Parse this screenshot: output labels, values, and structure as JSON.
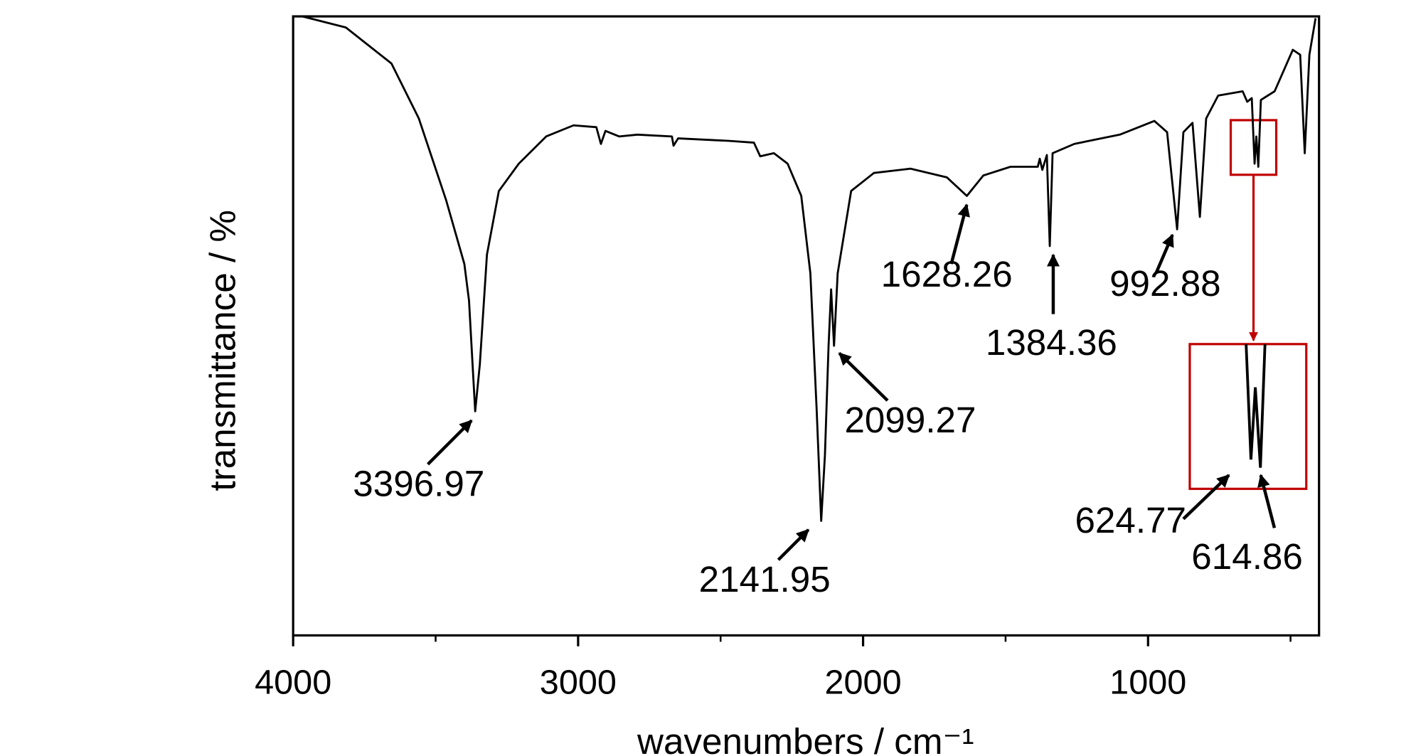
{
  "chart_data": {
    "type": "line",
    "x_label": "wavenumbers / cm⁻¹",
    "y_label": "transmittance / %",
    "xlim": [
      4000,
      400
    ],
    "xticks": [
      4000,
      3000,
      2000,
      1000
    ],
    "xminorticks": [
      3500,
      2500,
      1500,
      500
    ],
    "ylim": [
      0,
      100
    ],
    "color": "#000000",
    "x": [
      3968,
      3815,
      3655,
      3559,
      3463,
      3399,
      3383,
      3367,
      3361,
      3345,
      3320,
      3278,
      3208,
      3112,
      3016,
      2936,
      2920,
      2904,
      2856,
      2792,
      2671,
      2665,
      2649,
      2473,
      2383,
      2361,
      2313,
      2265,
      2217,
      2185,
      2163,
      2147,
      2134,
      2121,
      2112,
      2102,
      2089,
      2042,
      1962,
      1834,
      1706,
      1636,
      1578,
      1483,
      1387,
      1380,
      1371,
      1355,
      1345,
      1335,
      1259,
      1099,
      978,
      933,
      898,
      876,
      844,
      818,
      796,
      754,
      668,
      652,
      636,
      626,
      620,
      613,
      604,
      556,
      492,
      466,
      450,
      434,
      412
    ],
    "values": [
      100,
      98.2,
      92.4,
      83.5,
      70.3,
      60,
      54.1,
      40.9,
      36.2,
      43.8,
      61.5,
      71.8,
      76.2,
      80.6,
      82.4,
      82.1,
      79.4,
      81.5,
      80.6,
      80.9,
      80.6,
      79.1,
      80.3,
      79.9,
      79.6,
      77.4,
      77.9,
      76.2,
      71,
      58.5,
      36.5,
      18.5,
      29.1,
      46.8,
      55.9,
      46.8,
      58.5,
      71.8,
      74.7,
      75.4,
      74,
      71,
      74.3,
      75.7,
      75.7,
      77,
      75.2,
      77.6,
      62.9,
      77.9,
      79.4,
      80.9,
      83.1,
      81.3,
      65.6,
      81.3,
      82.8,
      67.6,
      83.5,
      87.2,
      87.9,
      86.2,
      86.8,
      76.2,
      80.6,
      75.7,
      86.5,
      87.9,
      94.6,
      93.8,
      77.9,
      93.8,
      99.7
    ],
    "annotations": [
      "3396.97",
      "2141.95",
      "2099.27",
      "1628.26",
      "1384.36",
      "992.88",
      "624.77",
      "614.86"
    ]
  }
}
